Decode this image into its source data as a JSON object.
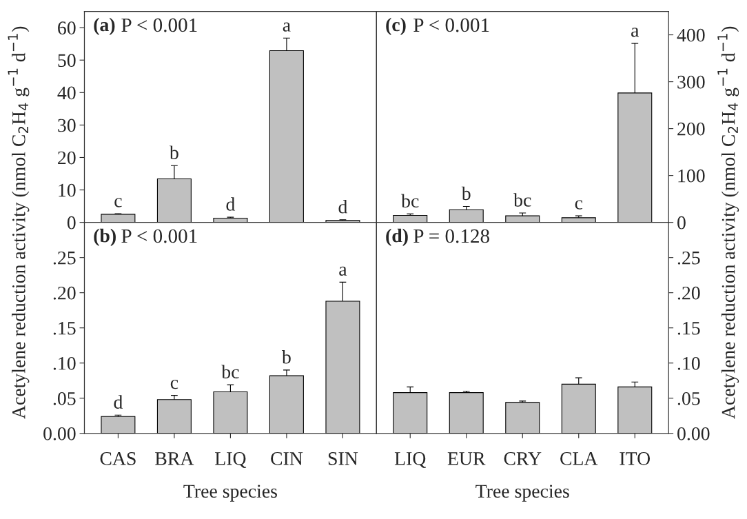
{
  "chart_data": [
    {
      "type": "bar",
      "categories": [
        null,
        null,
        null,
        null,
        null
      ],
      "values": [
        2.5,
        13.4,
        1.3,
        52.9,
        0.6
      ],
      "errors": [
        [
          2.5,
          2.7
        ],
        [
          13.4,
          17.5
        ],
        [
          1.3,
          1.6
        ],
        [
          52.9,
          56.8
        ],
        [
          0.6,
          0.8
        ]
      ],
      "color": "#c0c0c0",
      "value_labels": [
        "c",
        "b",
        "d",
        "a",
        "d"
      ],
      "ylim": [
        0,
        65
      ],
      "yticks": [
        0,
        10,
        20,
        30,
        40,
        50,
        60
      ],
      "tick_labels": "y",
      "ylabel": "Acetylene reduction activity (nmol C$_{2}$H$_{4}$ g$^{−1}$ d$^{−1}$)",
      "annotations": [
        "(a)",
        "P < 0.001"
      ],
      "grid": false,
      "legend": false
    },
    {
      "type": "bar",
      "categories": [
        null,
        null,
        null,
        null,
        null
      ],
      "values": [
        15,
        27,
        14,
        10,
        276
      ],
      "errors": [
        [
          15,
          18
        ],
        [
          27,
          34
        ],
        [
          14,
          20
        ],
        [
          10,
          14
        ],
        [
          276,
          382
        ]
      ],
      "color": "#c0c0c0",
      "value_labels": [
        "bc",
        "b",
        "bc",
        "c",
        "a"
      ],
      "ylim": [
        0,
        450
      ],
      "yticks": [
        0,
        100,
        200,
        300,
        400
      ],
      "tick_labels": "y",
      "ylabel": "Acetylene reduction activity (nmol C$_{2}$H$_{4}$ g$^{−1}$ d$^{−1}$)",
      "annotations": [
        "(c)",
        "P < 0.001"
      ],
      "grid": false,
      "legend": false
    },
    {
      "type": "bar",
      "categories": [
        "CAS",
        "BRA",
        "LIQ",
        "CIN",
        "SIN"
      ],
      "values": [
        0.024,
        0.048,
        0.059,
        0.082,
        0.188
      ],
      "errors": [
        [
          0.024,
          0.026
        ],
        [
          0.048,
          0.054
        ],
        [
          0.059,
          0.069
        ],
        [
          0.082,
          0.09
        ],
        [
          0.188,
          0.215
        ]
      ],
      "color": "#c0c0c0",
      "value_labels": [
        "d",
        "c",
        "bc",
        "b",
        "a"
      ],
      "ylim": [
        0,
        0.3
      ],
      "yticks": [
        {
          "value": 0,
          "label": "0.00"
        },
        {
          "value": 0.05,
          "label": ".05"
        },
        {
          "value": 0.1,
          "label": ".10"
        },
        {
          "value": 0.15,
          "label": ".15"
        },
        {
          "value": 0.2,
          "label": ".20"
        },
        {
          "value": 0.25,
          "label": ".25"
        }
      ],
      "xlabel": "Tree species",
      "annotations": [
        "(b)",
        "P < 0.001"
      ],
      "grid": false,
      "legend": false
    },
    {
      "type": "bar",
      "categories": [
        "LIQ",
        "EUR",
        "CRY",
        "CLA",
        "ITO"
      ],
      "values": [
        0.058,
        0.058,
        0.044,
        0.07,
        0.066
      ],
      "errors": [
        [
          0.058,
          0.066
        ],
        [
          0.058,
          0.06
        ],
        [
          0.044,
          0.046
        ],
        [
          0.07,
          0.079
        ],
        [
          0.066,
          0.073
        ]
      ],
      "color": "#c0c0c0",
      "ylim": [
        0,
        0.3
      ],
      "yticks": [
        {
          "value": 0,
          "label": "0.00"
        },
        {
          "value": 0.05,
          "label": ".05"
        },
        {
          "value": 0.1,
          "label": ".10"
        },
        {
          "value": 0.15,
          "label": ".15"
        },
        {
          "value": 0.2,
          "label": ".20"
        },
        {
          "value": 0.25,
          "label": ".25"
        }
      ],
      "xlabel": "Tree species",
      "annotations": [
        "(d)",
        "P = 0.128"
      ],
      "grid": false,
      "legend": false
    }
  ]
}
